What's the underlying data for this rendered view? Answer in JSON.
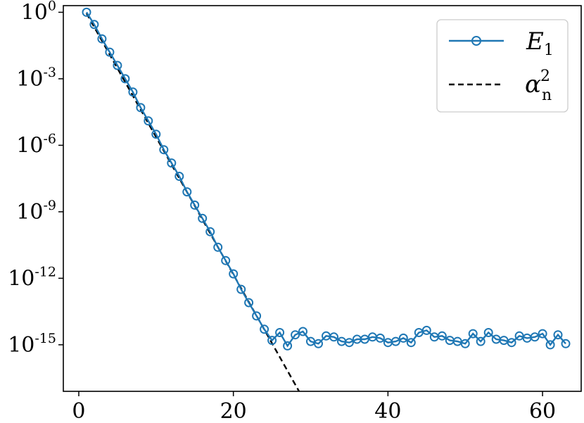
{
  "chart_data": {
    "type": "line",
    "title": "",
    "xlabel": "",
    "ylabel": "",
    "y_scale": "log",
    "xlim": [
      -2,
      65
    ],
    "ylim_exponent": [
      -17.1,
      0.3
    ],
    "x_ticks": [
      0,
      20,
      40,
      60
    ],
    "x_tick_labels": [
      "0",
      "20",
      "40",
      "60"
    ],
    "y_ticks": [
      {
        "base": "10",
        "exp": "0",
        "value": 0
      },
      {
        "base": "10",
        "exp": "-3",
        "value": -3
      },
      {
        "base": "10",
        "exp": "-6",
        "value": -6
      },
      {
        "base": "10",
        "exp": "-9",
        "value": -9
      },
      {
        "base": "10",
        "exp": "-12",
        "value": -12
      },
      {
        "base": "10",
        "exp": "-15",
        "value": -15
      }
    ],
    "grid": false,
    "legend_position": "top-right",
    "legend": [
      {
        "symbol": "E",
        "subscript": "1",
        "style": "line-circle-marker"
      },
      {
        "symbol": "α",
        "subscript": "n",
        "superscript": "2",
        "style": "dashed"
      }
    ],
    "series": [
      {
        "legend_index": 0,
        "color": "#1f77b4",
        "style": "solid-circle-markers",
        "x": [
          1,
          2,
          3,
          4,
          5,
          6,
          7,
          8,
          9,
          10,
          11,
          12,
          13,
          14,
          15,
          16,
          17,
          18,
          19,
          20,
          21,
          22,
          23,
          24,
          25,
          26,
          27,
          28,
          29,
          30,
          31,
          32,
          33,
          34,
          35,
          36,
          37,
          38,
          39,
          40,
          41,
          42,
          43,
          44,
          45,
          46,
          47,
          48,
          49,
          50,
          51,
          52,
          53,
          54,
          55,
          56,
          57,
          58,
          59,
          60,
          61,
          62,
          63
        ],
        "log10_y": [
          0.0,
          -0.55,
          -1.2,
          -1.8,
          -2.4,
          -3.0,
          -3.6,
          -4.3,
          -4.9,
          -5.5,
          -6.2,
          -6.8,
          -7.4,
          -8.1,
          -8.7,
          -9.3,
          -9.9,
          -10.6,
          -11.2,
          -11.8,
          -12.5,
          -13.1,
          -13.7,
          -14.3,
          -14.8,
          -14.45,
          -15.05,
          -14.55,
          -14.4,
          -14.85,
          -14.95,
          -14.6,
          -14.65,
          -14.85,
          -14.9,
          -14.75,
          -14.75,
          -14.65,
          -14.7,
          -14.9,
          -14.85,
          -14.7,
          -14.9,
          -14.45,
          -14.35,
          -14.65,
          -14.6,
          -14.8,
          -14.85,
          -14.95,
          -14.5,
          -14.85,
          -14.45,
          -14.75,
          -14.8,
          -14.9,
          -14.6,
          -14.7,
          -14.65,
          -14.5,
          -15.0,
          -14.55,
          -14.95
        ]
      },
      {
        "legend_index": 1,
        "color": "#000000",
        "style": "dashed",
        "x": [
          1,
          28.5
        ],
        "log10_y": [
          -0.05,
          -17.1
        ]
      }
    ]
  }
}
